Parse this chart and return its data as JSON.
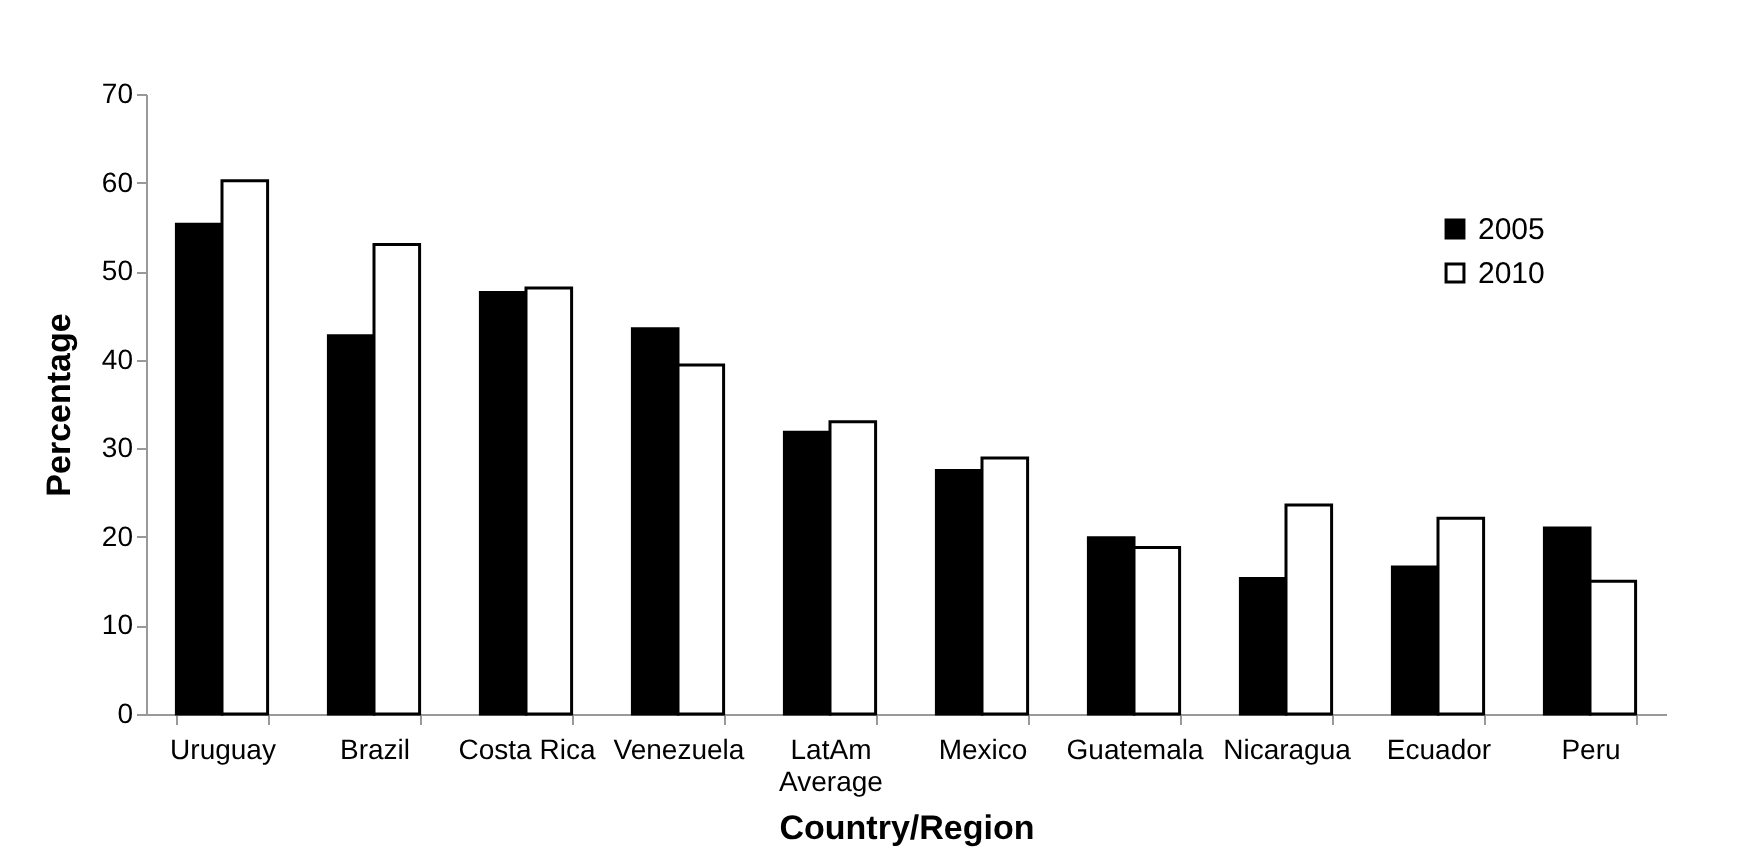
{
  "chart_data": {
    "type": "bar",
    "xlabel": "Country/Region",
    "ylabel": "Percentage",
    "categories": [
      "Uruguay",
      "Brazil",
      "Costa Rica",
      "Venezuela",
      "LatAm Average",
      "Mexico",
      "Guatemala",
      "Nicaragua",
      "Ecuador",
      "Peru"
    ],
    "series": [
      {
        "name": "2005",
        "color": "#000000",
        "values": [
          55.3,
          42.7,
          47.6,
          43.5,
          31.8,
          27.5,
          19.9,
          15.3,
          16.6,
          21.0
        ]
      },
      {
        "name": "2010",
        "color": "#ffffff",
        "values": [
          60.2,
          53.0,
          48.1,
          39.4,
          33.0,
          28.9,
          18.8,
          23.6,
          22.1,
          15.0
        ]
      }
    ],
    "ylim": [
      0,
      70
    ],
    "yticks": [
      0,
      10,
      20,
      30,
      40,
      50,
      60,
      70
    ],
    "grid": false,
    "legend": "top right"
  }
}
